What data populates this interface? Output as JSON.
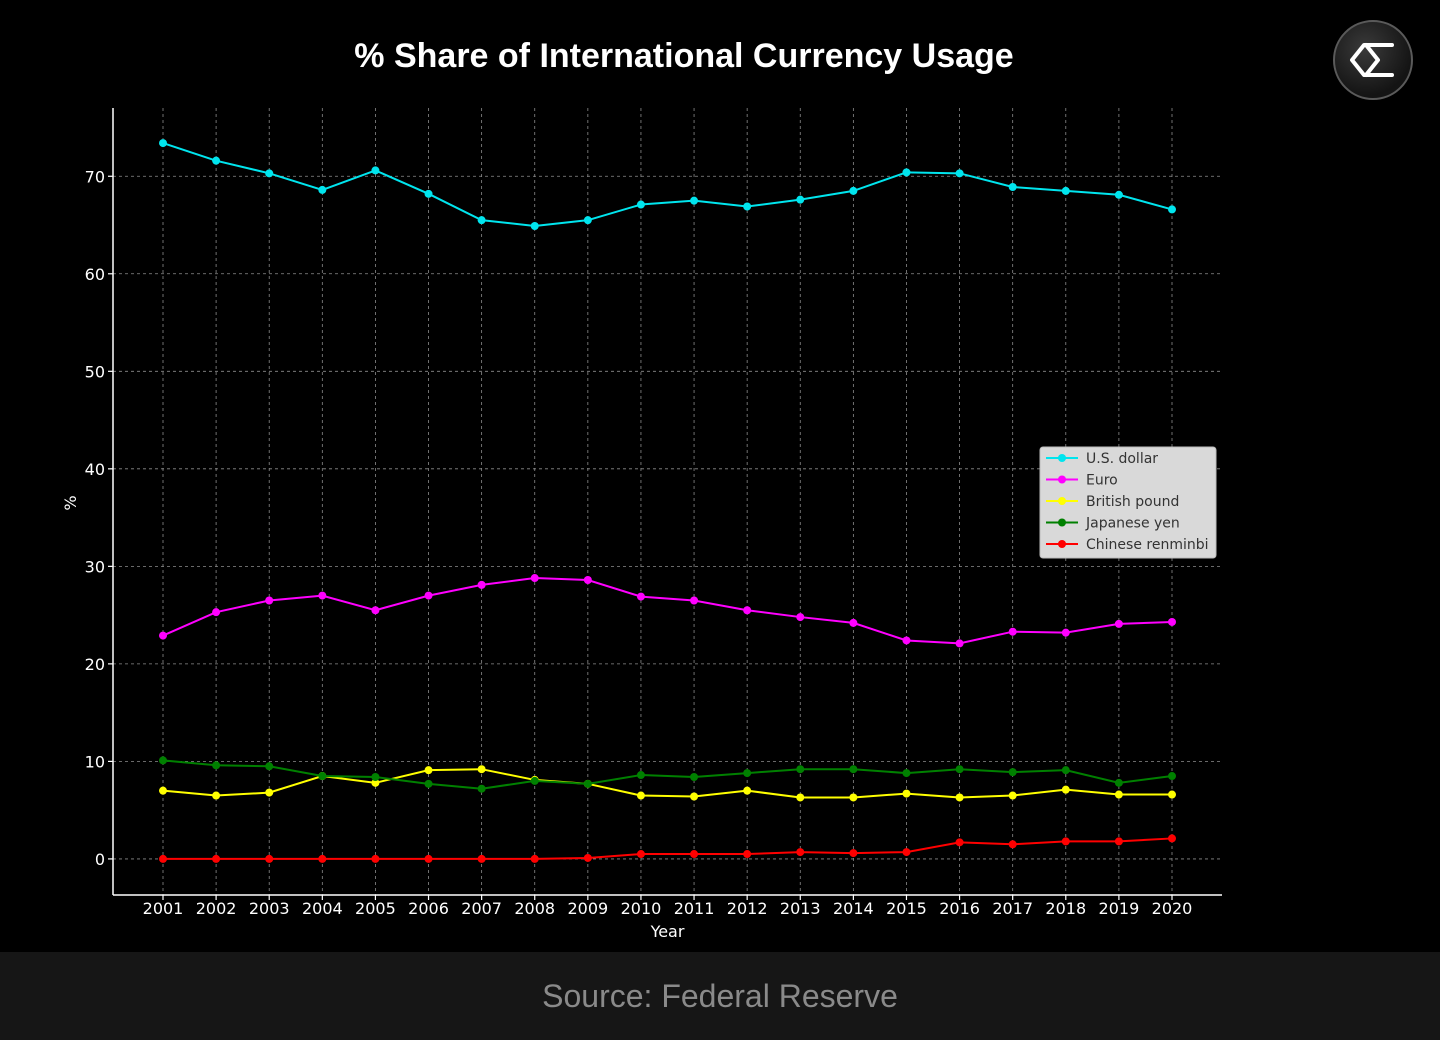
{
  "chart_data": {
    "type": "line",
    "title": "% Share of International Currency Usage",
    "xlabel": "Year",
    "ylabel": "%",
    "ylim": [
      -3.7,
      77
    ],
    "yticks": [
      0,
      10,
      20,
      30,
      40,
      50,
      60,
      70
    ],
    "grid": true,
    "legend_position": "center-right",
    "x": [
      2001,
      2002,
      2003,
      2004,
      2005,
      2006,
      2007,
      2008,
      2009,
      2010,
      2011,
      2012,
      2013,
      2014,
      2015,
      2016,
      2017,
      2018,
      2019,
      2020
    ],
    "series": [
      {
        "name": "U.S. dollar",
        "color": "#00e5ee",
        "values": [
          73.4,
          71.6,
          70.3,
          68.6,
          70.6,
          68.2,
          65.5,
          64.9,
          65.5,
          67.1,
          67.5,
          66.9,
          67.6,
          68.5,
          70.4,
          70.3,
          68.9,
          68.5,
          68.1,
          66.6
        ]
      },
      {
        "name": "Euro",
        "color": "#ff00ff",
        "values": [
          22.9,
          25.3,
          26.5,
          27.0,
          25.5,
          27.0,
          28.1,
          28.8,
          28.6,
          26.9,
          26.5,
          25.5,
          24.8,
          24.2,
          22.4,
          22.1,
          23.3,
          23.2,
          24.1,
          24.3
        ]
      },
      {
        "name": "British pound",
        "color": "#ffff00",
        "values": [
          7.0,
          6.5,
          6.8,
          8.5,
          7.8,
          9.1,
          9.2,
          8.1,
          7.7,
          6.5,
          6.4,
          7.0,
          6.3,
          6.3,
          6.7,
          6.3,
          6.5,
          7.1,
          6.6,
          6.6
        ]
      },
      {
        "name": "Japanese yen",
        "color": "#008000",
        "values": [
          10.1,
          9.6,
          9.5,
          8.5,
          8.4,
          7.7,
          7.2,
          8.0,
          7.7,
          8.6,
          8.4,
          8.8,
          9.2,
          9.2,
          8.8,
          9.2,
          8.9,
          9.1,
          7.8,
          8.5
        ]
      },
      {
        "name": "Chinese renminbi",
        "color": "#ff0000",
        "values": [
          0.0,
          0.0,
          0.0,
          0.0,
          0.0,
          0.0,
          0.0,
          0.0,
          0.1,
          0.5,
          0.5,
          0.5,
          0.7,
          0.6,
          0.7,
          1.7,
          1.5,
          1.8,
          1.8,
          2.1
        ]
      }
    ]
  },
  "footer": {
    "source": "Source: Federal Reserve"
  },
  "logo": {
    "icon": "sigma-logo-icon"
  },
  "colors": {
    "background": "#000000",
    "axis": "#ffffff",
    "grid": "#8c8c8c",
    "legend_bg": "#d9d9d9",
    "legend_text": "#333333"
  }
}
